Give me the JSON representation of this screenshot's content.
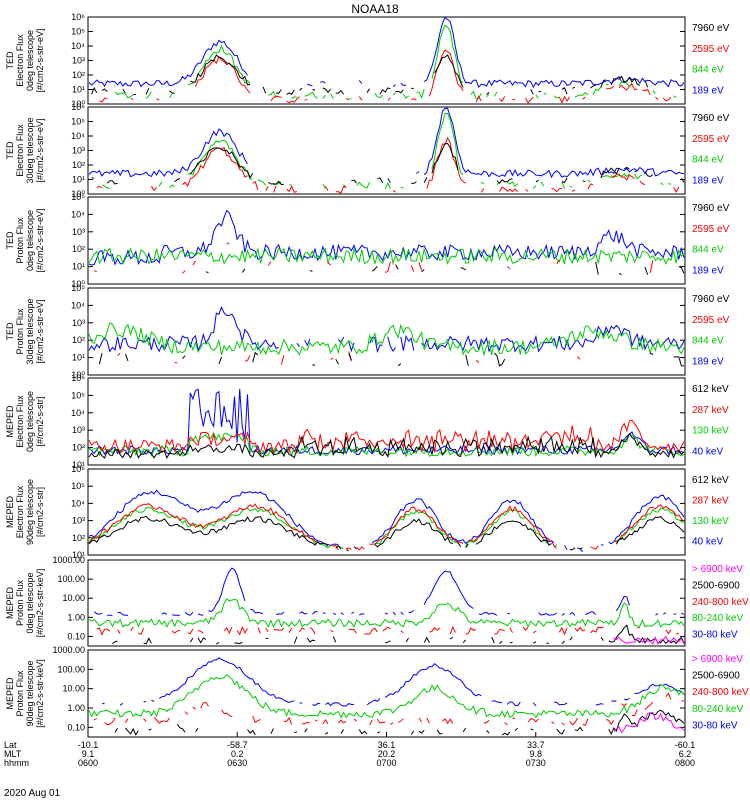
{
  "chart_data": {
    "type": "line",
    "title": "NOAA18",
    "date": "2020 Aug 01",
    "x_axis": {
      "row_labels": [
        "Lat",
        "MLT",
        "hhmm"
      ],
      "ticks": [
        {
          "lat": "-10.1",
          "mlt": "9.1",
          "hhmm": "0600"
        },
        {
          "lat": "-58.7",
          "mlt": "0.2",
          "hhmm": "0630"
        },
        {
          "lat": "36.1",
          "mlt": "20.2",
          "hhmm": "0700"
        },
        {
          "lat": "33.7",
          "mlt": "9.8",
          "hhmm": "0730"
        },
        {
          "lat": "-60.1",
          "mlt": "6.2",
          "hhmm": "0800"
        }
      ]
    },
    "panels": [
      {
        "ylabel": [
          "TED",
          "Electron Flux",
          "0deg telescope",
          "[#/cm2-s-str-eV]"
        ],
        "yticks": [
          "10⁰",
          "10¹",
          "10²",
          "10³",
          "10⁴",
          "10⁵",
          "10⁶"
        ],
        "ymin_exp": 0,
        "ymax_exp": 6,
        "kind": "ted",
        "legend": [
          {
            "label": "7960 eV",
            "color": "#000000"
          },
          {
            "label": "2595 eV",
            "color": "#ff0000"
          },
          {
            "label": "844 eV",
            "color": "#00cc00"
          },
          {
            "label": "189 eV",
            "color": "#0000ff"
          }
        ]
      },
      {
        "ylabel": [
          "TED",
          "Electron Flux",
          "30deg telescope",
          "[#/cm2-s-str-eV]"
        ],
        "yticks": [
          "10⁰",
          "10¹",
          "10²",
          "10³",
          "10⁴",
          "10⁵",
          "10⁶"
        ],
        "ymin_exp": 0,
        "ymax_exp": 6,
        "kind": "ted",
        "legend": [
          {
            "label": "7960 eV",
            "color": "#000000"
          },
          {
            "label": "2595 eV",
            "color": "#ff0000"
          },
          {
            "label": "844 eV",
            "color": "#00cc00"
          },
          {
            "label": "189 eV",
            "color": "#0000ff"
          }
        ]
      },
      {
        "ylabel": [
          "TED",
          "Proton Flux",
          "0deg telescope",
          "[#/cm2-s-str-eV]"
        ],
        "yticks": [
          "10⁰",
          "10¹",
          "10²",
          "10³",
          "10⁴",
          "10⁵"
        ],
        "ymin_exp": 0,
        "ymax_exp": 5,
        "kind": "tedp",
        "legend": [
          {
            "label": "7960 eV",
            "color": "#000000"
          },
          {
            "label": "2595 eV",
            "color": "#ff0000"
          },
          {
            "label": "844 eV",
            "color": "#00cc00"
          },
          {
            "label": "189 eV",
            "color": "#0000ff"
          }
        ]
      },
      {
        "ylabel": [
          "TED",
          "Proton Flux",
          "30deg telescope",
          "[#/cm2-s-str-eV]"
        ],
        "yticks": [
          "10⁰",
          "10¹",
          "10²",
          "10³",
          "10⁴",
          "10⁵"
        ],
        "ymin_exp": 0,
        "ymax_exp": 5,
        "kind": "tedp2",
        "legend": [
          {
            "label": "7960 eV",
            "color": "#000000"
          },
          {
            "label": "2595 eV",
            "color": "#ff0000"
          },
          {
            "label": "844 eV",
            "color": "#00cc00"
          },
          {
            "label": "189 eV",
            "color": "#0000ff"
          }
        ]
      },
      {
        "ylabel": [
          "MEPED",
          "Electron Flux",
          "0deg telescope",
          "[#/cm2-s-str]"
        ],
        "yticks": [
          "10¹",
          "10²",
          "10³",
          "10⁴",
          "10⁵",
          "10⁶"
        ],
        "ymin_exp": 1,
        "ymax_exp": 6,
        "kind": "mepe0",
        "legend": [
          {
            "label": "612 keV",
            "color": "#000000"
          },
          {
            "label": "287 keV",
            "color": "#ff0000"
          },
          {
            "label": "130 keV",
            "color": "#00cc00"
          },
          {
            "label": "40 keV",
            "color": "#0000ff"
          }
        ]
      },
      {
        "ylabel": [
          "MEPED",
          "Electron Flux",
          "90deg telescope",
          "[#/cm2-s-str]"
        ],
        "yticks": [
          "10¹",
          "10²",
          "10³",
          "10⁴",
          "10⁵",
          "10⁶"
        ],
        "ymin_exp": 1,
        "ymax_exp": 6,
        "kind": "mepe90",
        "legend": [
          {
            "label": "612 keV",
            "color": "#000000"
          },
          {
            "label": "287 keV",
            "color": "#ff0000"
          },
          {
            "label": "130 keV",
            "color": "#00cc00"
          },
          {
            "label": "40 keV",
            "color": "#0000ff"
          }
        ]
      },
      {
        "ylabel": [
          "MEPED",
          "Proton Flux",
          "0deg telescope",
          "[#/cm2-s-str-keV]"
        ],
        "yticks": [
          "0.10",
          "1.00",
          "10.00",
          "100.00",
          "1000.00"
        ],
        "ymin_exp": -1.5,
        "ymax_exp": 3,
        "kind": "mepp0",
        "legend": [
          {
            "label": "> 6900 keV",
            "color": "#ff00ff"
          },
          {
            "label": "2500-6900",
            "color": "#000000"
          },
          {
            "label": "240-800 keV",
            "color": "#ff0000"
          },
          {
            "label": "80-240 keV",
            "color": "#00cc00"
          },
          {
            "label": "30-80 keV",
            "color": "#0000ff"
          }
        ]
      },
      {
        "ylabel": [
          "MEPED",
          "Proton Flux",
          "90deg telescope",
          "[#/cm2-s-str-keV]"
        ],
        "yticks": [
          "0.10",
          "1.00",
          "10.00",
          "100.00",
          "1000.00"
        ],
        "ymin_exp": -1.5,
        "ymax_exp": 3,
        "kind": "mepp90",
        "legend": [
          {
            "label": "> 6900 keV",
            "color": "#ff00ff"
          },
          {
            "label": "2500-6900",
            "color": "#000000"
          },
          {
            "label": "240-800 keV",
            "color": "#ff0000"
          },
          {
            "label": "80-240 keV",
            "color": "#00cc00"
          },
          {
            "label": "30-80 keV",
            "color": "#0000ff"
          }
        ]
      }
    ]
  }
}
